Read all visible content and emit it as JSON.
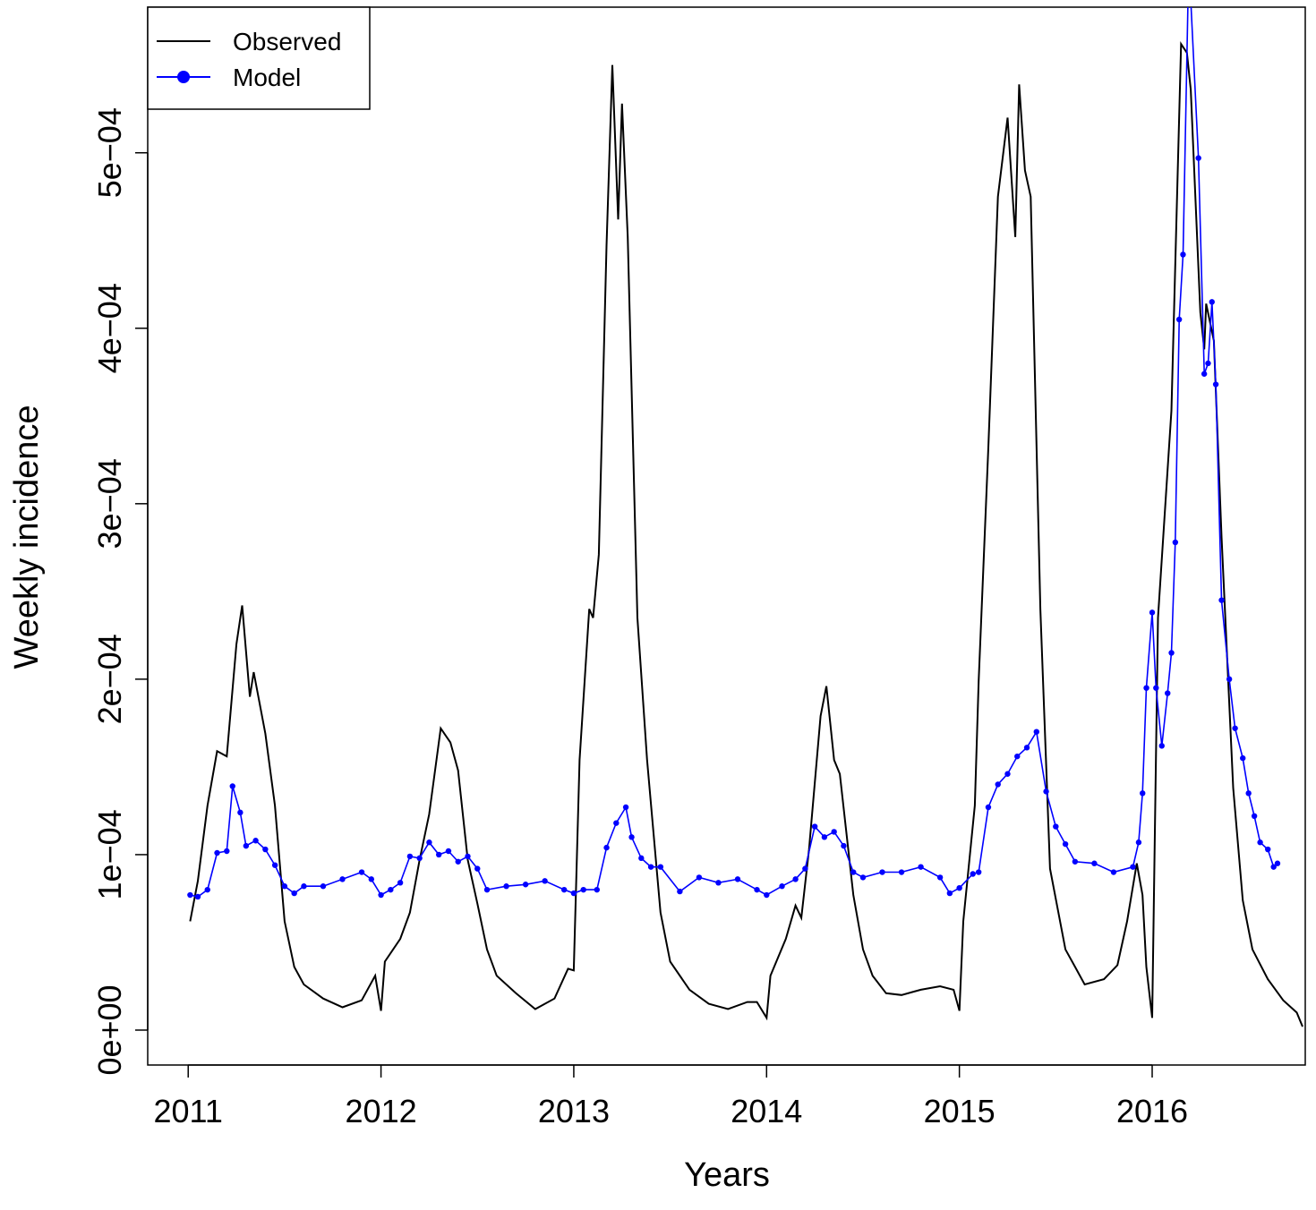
{
  "chart_data": {
    "type": "line",
    "xlabel": "Years",
    "ylabel": "Weekly incidence",
    "xlim": [
      2010.79,
      2016.794
    ],
    "xticks": [
      2011,
      2012,
      2013,
      2014,
      2015,
      2016
    ],
    "ylim": [
      -1.99e-05,
      0.000583
    ],
    "yticks": [
      {
        "value": 0,
        "label": "0e+00"
      },
      {
        "value": 0.0001,
        "label": "1e−04"
      },
      {
        "value": 0.0002,
        "label": "2e−04"
      },
      {
        "value": 0.0003,
        "label": "3e−04"
      },
      {
        "value": 0.0004,
        "label": "4e−04"
      },
      {
        "value": 0.0005,
        "label": "5e−04"
      }
    ],
    "legend": "top-left",
    "series": [
      {
        "name": "Observed",
        "color": "#000000",
        "x": [
          2011.01,
          2011.05,
          2011.1,
          2011.15,
          2011.2,
          2011.25,
          2011.28,
          2011.32,
          2011.34,
          2011.4,
          2011.45,
          2011.5,
          2011.55,
          2011.6,
          2011.7,
          2011.8,
          2011.9,
          2011.97,
          2012.0,
          2012.02,
          2012.1,
          2012.15,
          2012.2,
          2012.25,
          2012.31,
          2012.36,
          2012.4,
          2012.45,
          2012.5,
          2012.55,
          2012.6,
          2012.7,
          2012.8,
          2012.9,
          2012.97,
          2013.0,
          2013.03,
          2013.08,
          2013.1,
          2013.13,
          2013.17,
          2013.2,
          2013.23,
          2013.25,
          2013.28,
          2013.33,
          2013.38,
          2013.45,
          2013.5,
          2013.6,
          2013.7,
          2013.8,
          2013.9,
          2013.95,
          2014.0,
          2014.02,
          2014.1,
          2014.15,
          2014.18,
          2014.22,
          2014.28,
          2014.31,
          2014.35,
          2014.38,
          2014.45,
          2014.5,
          2014.55,
          2014.62,
          2014.7,
          2014.8,
          2014.9,
          2014.97,
          2015.0,
          2015.02,
          2015.08,
          2015.1,
          2015.15,
          2015.2,
          2015.25,
          2015.29,
          2015.31,
          2015.34,
          2015.37,
          2015.42,
          2015.47,
          2015.55,
          2015.6,
          2015.65,
          2015.75,
          2015.82,
          2015.87,
          2015.92,
          2015.95,
          2015.97,
          2016.0,
          2016.03,
          2016.1,
          2016.15,
          2016.18,
          2016.2,
          2016.25,
          2016.27,
          2016.28,
          2016.32,
          2016.36,
          2016.42,
          2016.47,
          2016.52,
          2016.6,
          2016.68,
          2016.75,
          2016.78
        ],
        "values": [
          6.2e-05,
          8.5e-05,
          0.000128,
          0.000159,
          0.000156,
          0.00022,
          0.000242,
          0.00019,
          0.000204,
          0.000169,
          0.000128,
          6.2e-05,
          3.6e-05,
          2.6e-05,
          1.8e-05,
          1.3e-05,
          1.7e-05,
          3.1e-05,
          1.1e-05,
          3.9e-05,
          5.2e-05,
          6.7e-05,
          9.7e-05,
          0.000123,
          0.000172,
          0.000164,
          0.000148,
          9.7e-05,
          7.2e-05,
          4.6e-05,
          3.1e-05,
          2.1e-05,
          1.2e-05,
          1.8e-05,
          3.5e-05,
          3.4e-05,
          0.000154,
          0.00024,
          0.000235,
          0.000271,
          0.000447,
          0.00055,
          0.000462,
          0.000528,
          0.000452,
          0.000235,
          0.000154,
          6.7e-05,
          3.9e-05,
          2.3e-05,
          1.5e-05,
          1.2e-05,
          1.6e-05,
          1.6e-05,
          7e-06,
          3.1e-05,
          5.2e-05,
          7.1e-05,
          6.4e-05,
          0.000103,
          0.000179,
          0.000196,
          0.000154,
          0.000146,
          7.7e-05,
          4.6e-05,
          3.1e-05,
          2.1e-05,
          2e-05,
          2.3e-05,
          2.5e-05,
          2.3e-05,
          1.1e-05,
          6.2e-05,
          0.000128,
          0.000199,
          0.000332,
          0.000475,
          0.00052,
          0.000452,
          0.000539,
          0.00049,
          0.000475,
          0.00024,
          9.2e-05,
          4.6e-05,
          3.6e-05,
          2.6e-05,
          2.9e-05,
          3.7e-05,
          6.2e-05,
          9.5e-05,
          7.7e-05,
          3.6e-05,
          7e-06,
          0.000235,
          0.000353,
          0.000562,
          0.000557,
          0.000536,
          0.000409,
          0.000388,
          0.000414,
          0.000393,
          0.000281,
          0.000138,
          7.4e-05,
          4.6e-05,
          2.9e-05,
          1.7e-05,
          1e-05,
          2e-06
        ]
      },
      {
        "name": "Model",
        "color": "#0000ff",
        "x": [
          2011.01,
          2011.05,
          2011.1,
          2011.15,
          2011.2,
          2011.23,
          2011.27,
          2011.3,
          2011.35,
          2011.4,
          2011.45,
          2011.5,
          2011.55,
          2011.6,
          2011.7,
          2011.8,
          2011.9,
          2011.95,
          2012.0,
          2012.05,
          2012.1,
          2012.15,
          2012.2,
          2012.25,
          2012.3,
          2012.35,
          2012.4,
          2012.45,
          2012.5,
          2012.55,
          2012.65,
          2012.75,
          2012.85,
          2012.95,
          2013.0,
          2013.05,
          2013.12,
          2013.17,
          2013.22,
          2013.27,
          2013.3,
          2013.35,
          2013.4,
          2013.45,
          2013.55,
          2013.65,
          2013.75,
          2013.85,
          2013.95,
          2014.0,
          2014.08,
          2014.15,
          2014.2,
          2014.25,
          2014.3,
          2014.35,
          2014.4,
          2014.45,
          2014.5,
          2014.6,
          2014.7,
          2014.8,
          2014.9,
          2014.95,
          2015.0,
          2015.07,
          2015.1,
          2015.15,
          2015.2,
          2015.25,
          2015.3,
          2015.35,
          2015.4,
          2015.45,
          2015.5,
          2015.55,
          2015.6,
          2015.7,
          2015.8,
          2015.9,
          2015.93,
          2015.95,
          2015.97,
          2016.0,
          2016.02,
          2016.05,
          2016.08,
          2016.1,
          2016.12,
          2016.14,
          2016.16,
          2016.19,
          2016.24,
          2016.27,
          2016.29,
          2016.31,
          2016.33,
          2016.36,
          2016.4,
          2016.43,
          2016.47,
          2016.5,
          2016.53,
          2016.56,
          2016.6,
          2016.63,
          2016.65
        ],
        "values": [
          7.7e-05,
          7.6e-05,
          8e-05,
          0.000101,
          0.000102,
          0.000139,
          0.000124,
          0.000105,
          0.000108,
          0.000103,
          9.4e-05,
          8.2e-05,
          7.8e-05,
          8.2e-05,
          8.2e-05,
          8.6e-05,
          9e-05,
          8.6e-05,
          7.7e-05,
          8e-05,
          8.4e-05,
          9.9e-05,
          9.8e-05,
          0.000107,
          0.0001,
          0.000102,
          9.6e-05,
          9.9e-05,
          9.2e-05,
          8e-05,
          8.2e-05,
          8.3e-05,
          8.5e-05,
          8e-05,
          7.8e-05,
          8e-05,
          8e-05,
          0.000104,
          0.000118,
          0.000127,
          0.00011,
          9.8e-05,
          9.3e-05,
          9.3e-05,
          7.9e-05,
          8.7e-05,
          8.4e-05,
          8.6e-05,
          8e-05,
          7.7e-05,
          8.2e-05,
          8.6e-05,
          9.2e-05,
          0.000116,
          0.00011,
          0.000113,
          0.000105,
          9e-05,
          8.7e-05,
          9e-05,
          9e-05,
          9.3e-05,
          8.7e-05,
          7.8e-05,
          8.1e-05,
          8.9e-05,
          9e-05,
          0.000127,
          0.00014,
          0.000146,
          0.000156,
          0.000161,
          0.00017,
          0.000136,
          0.000116,
          0.000106,
          9.6e-05,
          9.5e-05,
          9e-05,
          9.3e-05,
          0.000107,
          0.000135,
          0.000195,
          0.000238,
          0.000195,
          0.000162,
          0.000192,
          0.000215,
          0.000278,
          0.000405,
          0.000442,
          0.00061,
          0.000497,
          0.000374,
          0.00038,
          0.000415,
          0.000368,
          0.000245,
          0.0002,
          0.000172,
          0.000155,
          0.000135,
          0.000122,
          0.000107,
          0.000103,
          9.3e-05,
          9.5e-05
        ]
      }
    ]
  }
}
